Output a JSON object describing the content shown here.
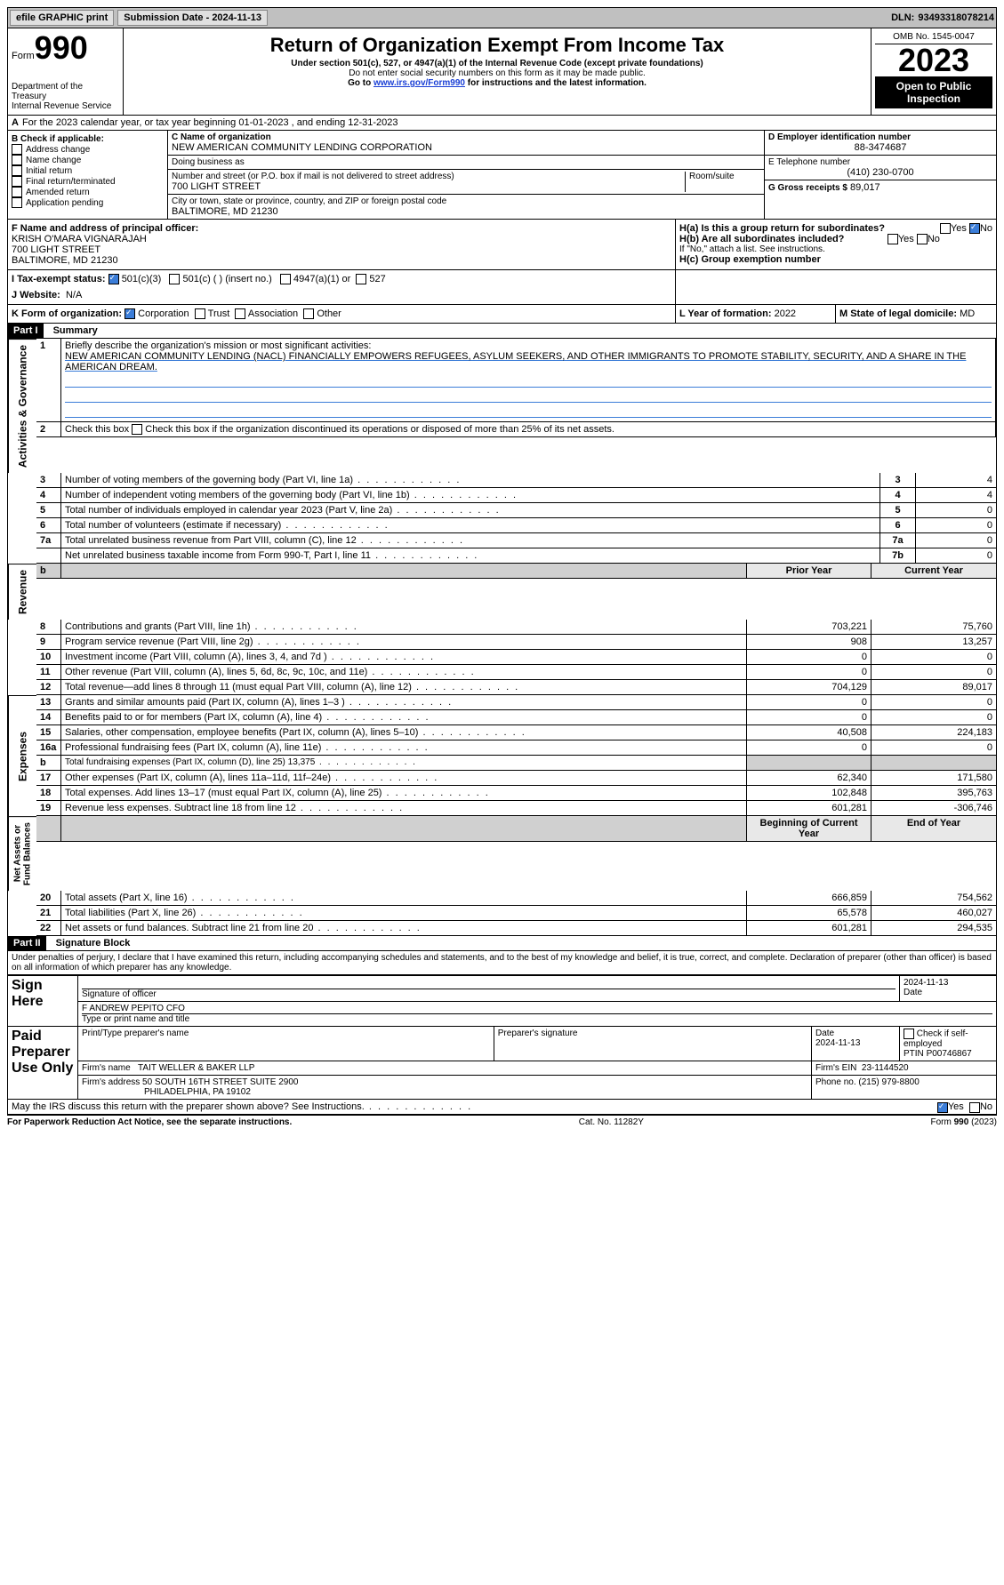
{
  "topbar": {
    "efile": "efile GRAPHIC print",
    "submission": "Submission Date - 2024-11-13",
    "dln_label": "DLN:",
    "dln": "93493318078214"
  },
  "header": {
    "form_word": "Form",
    "form_no": "990",
    "dept": "Department of the Treasury\nInternal Revenue Service",
    "title": "Return of Organization Exempt From Income Tax",
    "sub1": "Under section 501(c), 527, or 4947(a)(1) of the Internal Revenue Code (except private foundations)",
    "sub2": "Do not enter social security numbers on this form as it may be made public.",
    "sub3_pre": "Go to ",
    "sub3_link": "www.irs.gov/Form990",
    "sub3_post": " for instructions and the latest information.",
    "omb": "OMB No. 1545-0047",
    "year": "2023",
    "open": "Open to Public Inspection"
  },
  "line_a": "For the 2023 calendar year, or tax year beginning 01-01-2023   , and ending 12-31-2023",
  "boxB": {
    "title": "B Check if applicable:",
    "items": [
      "Address change",
      "Name change",
      "Initial return",
      "Final return/terminated",
      "Amended return",
      "Application pending"
    ]
  },
  "boxC": {
    "label_name": "C Name of organization",
    "name": "NEW AMERICAN COMMUNITY LENDING CORPORATION",
    "dba_label": "Doing business as",
    "street_label": "Number and street (or P.O. box if mail is not delivered to street address)",
    "street": "700 LIGHT STREET",
    "room_label": "Room/suite",
    "city_label": "City or town, state or province, country, and ZIP or foreign postal code",
    "city": "BALTIMORE, MD  21230"
  },
  "boxD": {
    "ein_label": "D Employer identification number",
    "ein": "88-3474687",
    "phone_label": "E Telephone number",
    "phone": "(410) 230-0700",
    "gross_label": "G Gross receipts $",
    "gross": "89,017"
  },
  "boxF": {
    "label": "F  Name and address of principal officer:",
    "name": "KRISH O'MARA VIGNARAJAH",
    "street": "700 LIGHT STREET",
    "city": "BALTIMORE, MD  21230"
  },
  "boxH": {
    "ha": "H(a)  Is this a group return for subordinates?",
    "hb": "H(b)  Are all subordinates included?",
    "hb_note": "If \"No,\" attach a list. See instructions.",
    "hc": "H(c)  Group exemption number"
  },
  "boxI": {
    "label": "I    Tax-exempt status:",
    "c3": "501(c)(3)",
    "c": "501(c) (  ) (insert no.)",
    "a1": "4947(a)(1) or",
    "527": "527"
  },
  "boxJ": {
    "label": "J    Website:",
    "val": "N/A"
  },
  "boxK": {
    "label": "K Form of organization:",
    "corp": "Corporation",
    "trust": "Trust",
    "assoc": "Association",
    "other": "Other"
  },
  "boxL": {
    "label": "L Year of formation:",
    "val": "2022"
  },
  "boxM": {
    "label": "M State of legal domicile:",
    "val": "MD"
  },
  "part1": {
    "hdr": "Part I",
    "title": "Summary",
    "q1_label": "1",
    "q1_text": "Briefly describe the organization's mission or most significant activities:",
    "mission": "NEW AMERICAN COMMUNITY LENDING (NACL) FINANCIALLY EMPOWERS REFUGEES, ASYLUM SEEKERS, AND OTHER IMMIGRANTS TO PROMOTE STABILITY, SECURITY, AND A SHARE IN THE AMERICAN DREAM.",
    "q2": "Check this box      if the organization discontinued its operations or disposed of more than 25% of its net assets.",
    "gov_label": "Activities & Governance",
    "rows": [
      {
        "n": "3",
        "d": "Number of voting members of the governing body (Part VI, line 1a)",
        "k": "3",
        "v": "4"
      },
      {
        "n": "4",
        "d": "Number of independent voting members of the governing body (Part VI, line 1b)",
        "k": "4",
        "v": "4"
      },
      {
        "n": "5",
        "d": "Total number of individuals employed in calendar year 2023 (Part V, line 2a)",
        "k": "5",
        "v": "0"
      },
      {
        "n": "6",
        "d": "Total number of volunteers (estimate if necessary)",
        "k": "6",
        "v": "0"
      },
      {
        "n": "7a",
        "d": "Total unrelated business revenue from Part VIII, column (C), line 12",
        "k": "7a",
        "v": "0"
      },
      {
        "n": "",
        "d": "Net unrelated business taxable income from Form 990-T, Part I, line 11",
        "k": "7b",
        "v": "0"
      }
    ],
    "col_prior": "Prior Year",
    "col_current": "Current Year",
    "rev_label": "Revenue",
    "rev_rows": [
      {
        "n": "8",
        "d": "Contributions and grants (Part VIII, line 1h)",
        "p": "703,221",
        "c": "75,760"
      },
      {
        "n": "9",
        "d": "Program service revenue (Part VIII, line 2g)",
        "p": "908",
        "c": "13,257"
      },
      {
        "n": "10",
        "d": "Investment income (Part VIII, column (A), lines 3, 4, and 7d )",
        "p": "0",
        "c": "0"
      },
      {
        "n": "11",
        "d": "Other revenue (Part VIII, column (A), lines 5, 6d, 8c, 9c, 10c, and 11e)",
        "p": "0",
        "c": "0"
      },
      {
        "n": "12",
        "d": "Total revenue—add lines 8 through 11 (must equal Part VIII, column (A), line 12)",
        "p": "704,129",
        "c": "89,017"
      }
    ],
    "exp_label": "Expenses",
    "exp_rows": [
      {
        "n": "13",
        "d": "Grants and similar amounts paid (Part IX, column (A), lines 1–3 )",
        "p": "0",
        "c": "0"
      },
      {
        "n": "14",
        "d": "Benefits paid to or for members (Part IX, column (A), line 4)",
        "p": "0",
        "c": "0"
      },
      {
        "n": "15",
        "d": "Salaries, other compensation, employee benefits (Part IX, column (A), lines 5–10)",
        "p": "40,508",
        "c": "224,183"
      },
      {
        "n": "16a",
        "d": "Professional fundraising fees (Part IX, column (A), line 11e)",
        "p": "0",
        "c": "0"
      },
      {
        "n": "b",
        "d": "Total fundraising expenses (Part IX, column (D), line 25) 13,375",
        "p": "SHADE",
        "c": "SHADE"
      },
      {
        "n": "17",
        "d": "Other expenses (Part IX, column (A), lines 11a–11d, 11f–24e)",
        "p": "62,340",
        "c": "171,580"
      },
      {
        "n": "18",
        "d": "Total expenses. Add lines 13–17 (must equal Part IX, column (A), line 25)",
        "p": "102,848",
        "c": "395,763"
      },
      {
        "n": "19",
        "d": "Revenue less expenses. Subtract line 18 from line 12",
        "p": "601,281",
        "c": "-306,746"
      }
    ],
    "na_label": "Net Assets or\nFund Balances",
    "col_beg": "Beginning of Current Year",
    "col_end": "End of Year",
    "na_rows": [
      {
        "n": "20",
        "d": "Total assets (Part X, line 16)",
        "p": "666,859",
        "c": "754,562"
      },
      {
        "n": "21",
        "d": "Total liabilities (Part X, line 26)",
        "p": "65,578",
        "c": "460,027"
      },
      {
        "n": "22",
        "d": "Net assets or fund balances. Subtract line 21 from line 20",
        "p": "601,281",
        "c": "294,535"
      }
    ]
  },
  "part2": {
    "hdr": "Part II",
    "title": "Signature Block",
    "decl": "Under penalties of perjury, I declare that I have examined this return, including accompanying schedules and statements, and to the best of my knowledge and belief, it is true, correct, and complete. Declaration of preparer (other than officer) is based on all information of which preparer has any knowledge.",
    "sign_here": "Sign Here",
    "sig_officer": "Signature of officer",
    "sig_date": "2024-11-13",
    "officer": "F ANDREW PEPITO  CFO",
    "type_title": "Type or print name and title",
    "paid": "Paid Preparer Use Only",
    "prep_name_label": "Print/Type preparer's name",
    "prep_sig_label": "Preparer's signature",
    "date_label": "Date",
    "prep_date": "2024-11-13",
    "check_label": "Check        if self-employed",
    "ptin_label": "PTIN",
    "ptin": "P00746867",
    "firm_name_label": "Firm's name",
    "firm_name": "TAIT WELLER & BAKER LLP",
    "firm_ein_label": "Firm's EIN",
    "firm_ein": "23-1144520",
    "firm_addr_label": "Firm's address",
    "firm_addr1": "50 SOUTH 16TH STREET SUITE 2900",
    "firm_addr2": "PHILADELPHIA, PA  19102",
    "phone_label": "Phone no.",
    "phone": "(215) 979-8800",
    "discuss": "May the IRS discuss this return with the preparer shown above? See Instructions."
  },
  "footer": {
    "left": "For Paperwork Reduction Act Notice, see the separate instructions.",
    "mid": "Cat. No. 11282Y",
    "right": "Form 990 (2023)"
  },
  "yn": {
    "yes": "Yes",
    "no": "No"
  }
}
